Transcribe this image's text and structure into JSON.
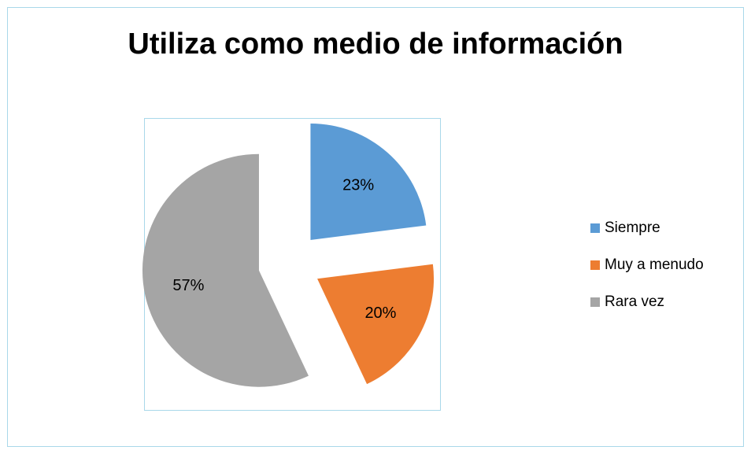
{
  "chart_data": {
    "type": "pie",
    "title": "Utiliza como medio de información",
    "categories": [
      "Siempre",
      "Muy a menudo",
      "Rara vez"
    ],
    "values": [
      23,
      20,
      57
    ],
    "value_labels": [
      "23%",
      "20%",
      "57%"
    ],
    "colors": [
      "#5b9bd5",
      "#ed7d31",
      "#a5a5a5"
    ],
    "legend": "right"
  }
}
